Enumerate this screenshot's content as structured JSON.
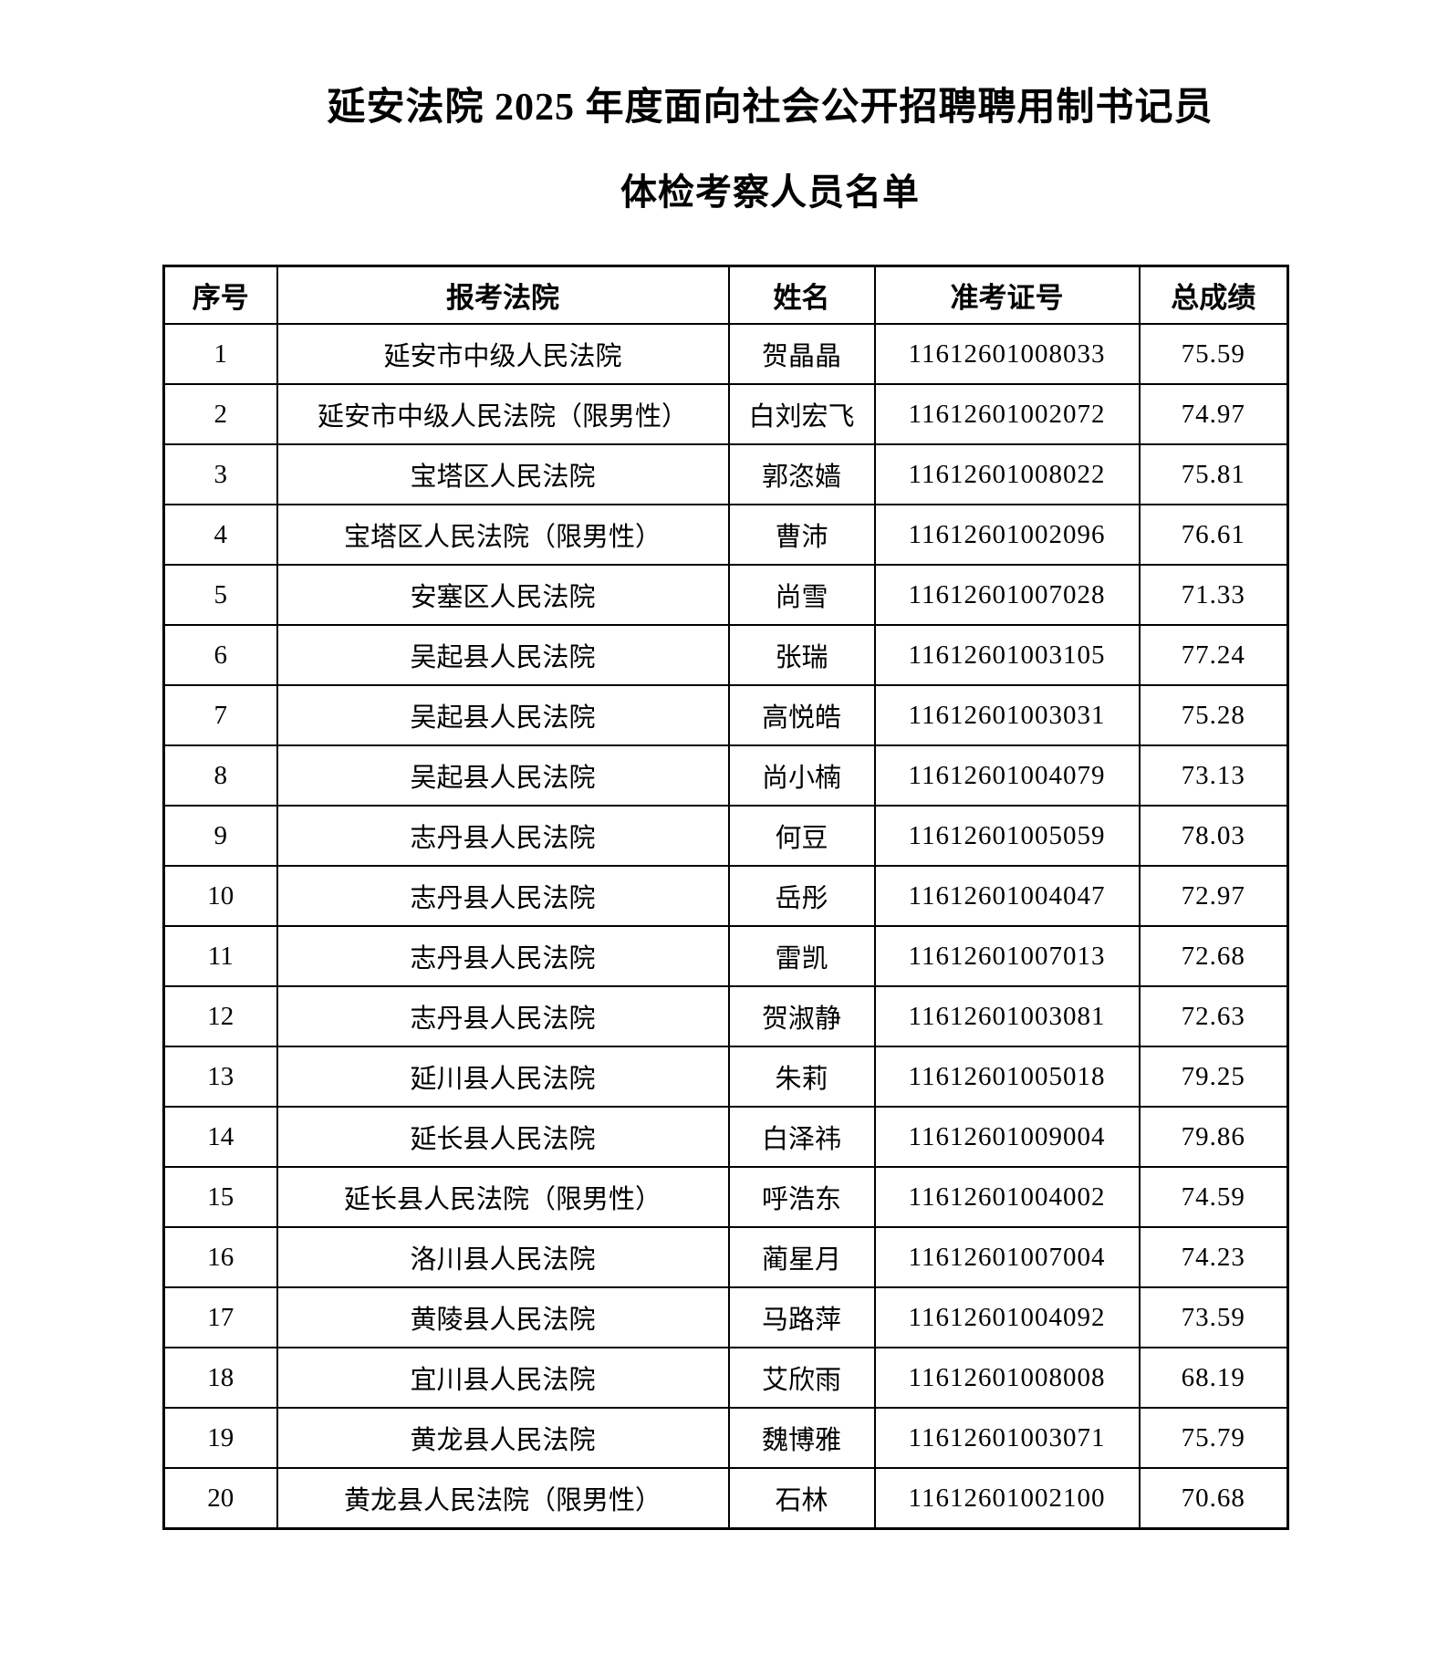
{
  "page": {
    "title_line1": "延安法院 2025 年度面向社会公开招聘聘用制书记员",
    "title_line2": "体检考察人员名单"
  },
  "table": {
    "headers": [
      "序号",
      "报考法院",
      "姓名",
      "准考证号",
      "总成绩"
    ],
    "rows": [
      {
        "no": "1",
        "court": "延安市中级人民法院",
        "name": "贺晶晶",
        "ticket": "11612601008033",
        "score": "75.59"
      },
      {
        "no": "2",
        "court": "延安市中级人民法院（限男性）",
        "name": "白刘宏飞",
        "ticket": "11612601002072",
        "score": "74.97"
      },
      {
        "no": "3",
        "court": "宝塔区人民法院",
        "name": "郭恣嫱",
        "ticket": "11612601008022",
        "score": "75.81"
      },
      {
        "no": "4",
        "court": "宝塔区人民法院（限男性）",
        "name": "曹沛",
        "ticket": "11612601002096",
        "score": "76.61"
      },
      {
        "no": "5",
        "court": "安塞区人民法院",
        "name": "尚雪",
        "ticket": "11612601007028",
        "score": "71.33"
      },
      {
        "no": "6",
        "court": "吴起县人民法院",
        "name": "张瑞",
        "ticket": "11612601003105",
        "score": "77.24"
      },
      {
        "no": "7",
        "court": "吴起县人民法院",
        "name": "高悦皓",
        "ticket": "11612601003031",
        "score": "75.28"
      },
      {
        "no": "8",
        "court": "吴起县人民法院",
        "name": "尚小楠",
        "ticket": "11612601004079",
        "score": "73.13"
      },
      {
        "no": "9",
        "court": "志丹县人民法院",
        "name": "何豆",
        "ticket": "11612601005059",
        "score": "78.03"
      },
      {
        "no": "10",
        "court": "志丹县人民法院",
        "name": "岳彤",
        "ticket": "11612601004047",
        "score": "72.97"
      },
      {
        "no": "11",
        "court": "志丹县人民法院",
        "name": "雷凯",
        "ticket": "11612601007013",
        "score": "72.68"
      },
      {
        "no": "12",
        "court": "志丹县人民法院",
        "name": "贺淑静",
        "ticket": "11612601003081",
        "score": "72.63"
      },
      {
        "no": "13",
        "court": "延川县人民法院",
        "name": "朱莉",
        "ticket": "11612601005018",
        "score": "79.25"
      },
      {
        "no": "14",
        "court": "延长县人民法院",
        "name": "白泽祎",
        "ticket": "11612601009004",
        "score": "79.86"
      },
      {
        "no": "15",
        "court": "延长县人民法院（限男性）",
        "name": "呼浩东",
        "ticket": "11612601004002",
        "score": "74.59"
      },
      {
        "no": "16",
        "court": "洛川县人民法院",
        "name": "蔺星月",
        "ticket": "11612601007004",
        "score": "74.23"
      },
      {
        "no": "17",
        "court": "黄陵县人民法院",
        "name": "马路萍",
        "ticket": "11612601004092",
        "score": "73.59"
      },
      {
        "no": "18",
        "court": "宜川县人民法院",
        "name": "艾欣雨",
        "ticket": "11612601008008",
        "score": "68.19"
      },
      {
        "no": "19",
        "court": "黄龙县人民法院",
        "name": "魏博雅",
        "ticket": "11612601003071",
        "score": "75.79"
      },
      {
        "no": "20",
        "court": "黄龙县人民法院（限男性）",
        "name": "石林",
        "ticket": "11612601002100",
        "score": "70.68"
      }
    ]
  }
}
